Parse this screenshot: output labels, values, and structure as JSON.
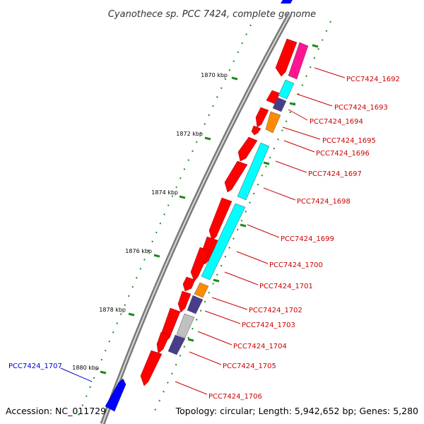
{
  "title": "Cyanothece sp. PCC 7424, complete genome",
  "accession": "Accession: NC_011729",
  "topology": "Topology: circular; Length: 5,942,652 bp; Genes: 5,280",
  "colors": {
    "backbone": "#777777",
    "tick": "#1f8a1f",
    "label_red": "#cc0000",
    "label_blue": "#0000cc",
    "gene_red": "#ff0000",
    "gene_blue": "#0000ff",
    "cyan": "#00ffff",
    "magenta": "#ff1493",
    "purple": "#483d8b",
    "orange": "#ff8c00",
    "gray": "#c0c0c0"
  },
  "scale_labels": [
    "1870 kbp",
    "1872 kbp",
    "1874 kbp",
    "1876 kbp",
    "1878 kbp",
    "1880 kbp"
  ],
  "labels": [
    "PCC7424_1692",
    "PCC7424_1693",
    "PCC7424_1694",
    "PCC7424_1695",
    "PCC7424_1696",
    "PCC7424_1697",
    "PCC7424_1698",
    "PCC7424_1699",
    "PCC7424_1700",
    "PCC7424_1701",
    "PCC7424_1702",
    "PCC7424_1703",
    "PCC7424_1704",
    "PCC7424_1705",
    "PCC7424_1706",
    "PCC7424_1707"
  ]
}
